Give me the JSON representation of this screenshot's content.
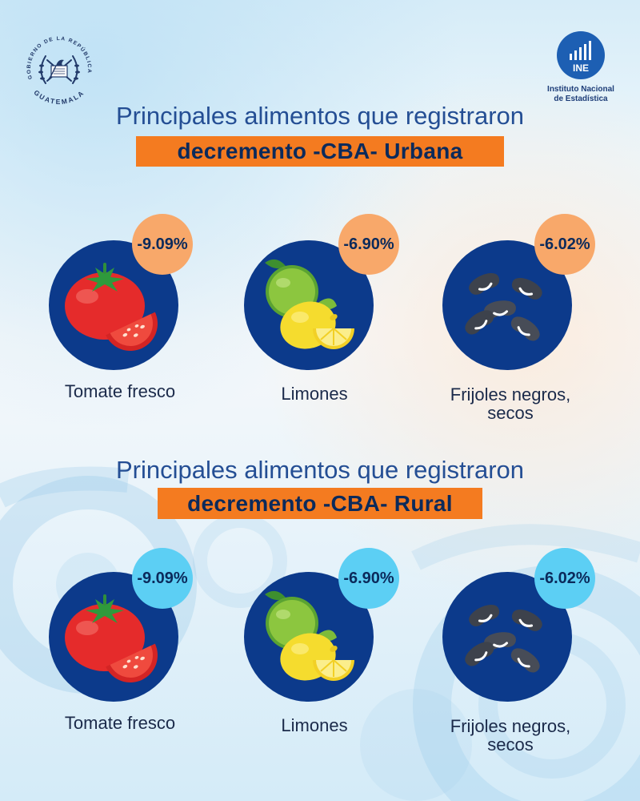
{
  "header": {
    "gov_seal": {
      "top_text": "GOBIERNO DE LA REPÚBLICA",
      "bottom_text": "GUATEMALA",
      "icon": "guatemala-coat-of-arms-icon"
    },
    "ine_logo": {
      "abbr": "INE",
      "name_line1": "Instituto Nacional",
      "name_line2": "de Estadística",
      "icon": "bar-chart-icon"
    }
  },
  "colors": {
    "circle_navy": "#0c3a8b",
    "title": "#244e94",
    "banner": "#f47b20",
    "banner_text": "#0b2a5b",
    "badge_urban": "#f8a86a",
    "badge_rural": "#5ccff4",
    "label": "#1b2a4a"
  },
  "sections": [
    {
      "title": "Principales alimentos que registraron",
      "banner": "decremento -CBA- Urbana",
      "items": [
        {
          "name": "Tomate fresco",
          "change": "-9.09%",
          "icon": "tomato-icon"
        },
        {
          "name": "Limones",
          "change": "-6.90%",
          "icon": "lemons-icon"
        },
        {
          "name": "Frijoles negros, secos",
          "change": "-6.02%",
          "icon": "black-beans-icon"
        }
      ]
    },
    {
      "title": "Principales alimentos que registraron",
      "banner": "decremento -CBA- Rural",
      "items": [
        {
          "name": "Tomate fresco",
          "change": "-9.09%",
          "icon": "tomato-icon"
        },
        {
          "name": "Limones",
          "change": "-6.90%",
          "icon": "lemons-icon"
        },
        {
          "name": "Frijoles negros, secos",
          "change": "-6.02%",
          "icon": "black-beans-icon"
        }
      ]
    }
  ]
}
